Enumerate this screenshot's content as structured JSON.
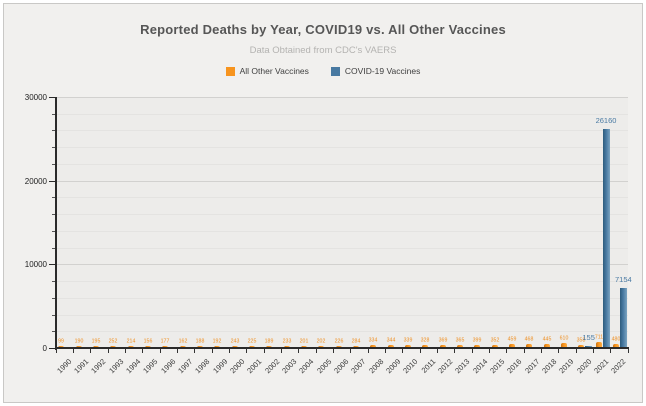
{
  "page": {
    "background": "#f1f0ee",
    "border_color": "#c9c8c6"
  },
  "chart_data": {
    "type": "bar",
    "title": "Reported Deaths by Year, COVID19 vs. All Other Vaccines",
    "subtitle": "Data Obtained from CDC's VAERS",
    "categories": [
      "1990",
      "1991",
      "1992",
      "1993",
      "1994",
      "1995",
      "1996",
      "1997",
      "1998",
      "1999",
      "2000",
      "2001",
      "2002",
      "2003",
      "2004",
      "2005",
      "2006",
      "2007",
      "2008",
      "2009",
      "2010",
      "2011",
      "2012",
      "2013",
      "2014",
      "2015",
      "2016",
      "2017",
      "2018",
      "2019",
      "2020",
      "2021",
      "2022"
    ],
    "series": [
      {
        "name": "All Other Vaccines",
        "color": "#F7941E",
        "label_color": "#EE8D1E",
        "values": [
          99,
          190,
          195,
          252,
          214,
          156,
          177,
          162,
          188,
          192,
          243,
          225,
          189,
          233,
          201,
          202,
          226,
          284,
          334,
          344,
          339,
          328,
          369,
          365,
          399,
          352,
          459,
          468,
          445,
          610,
          358,
          711,
          480
        ],
        "labels_shown": true
      },
      {
        "name": "COVID-19 Vaccines",
        "color": "#4879A1",
        "label_color": "#4A7AA3",
        "values": [
          0,
          0,
          0,
          0,
          0,
          0,
          0,
          0,
          0,
          0,
          0,
          0,
          0,
          0,
          0,
          0,
          0,
          0,
          0,
          0,
          0,
          0,
          0,
          0,
          0,
          0,
          0,
          0,
          0,
          0,
          155,
          26160,
          7154
        ],
        "labels_shown": true
      }
    ],
    "xlabel": "",
    "ylabel": "",
    "ylim": [
      0,
      30000
    ],
    "yticks": [
      0,
      10000,
      20000,
      30000
    ],
    "minor_grid_step": 2000,
    "grid": true,
    "legend_position": "top"
  }
}
